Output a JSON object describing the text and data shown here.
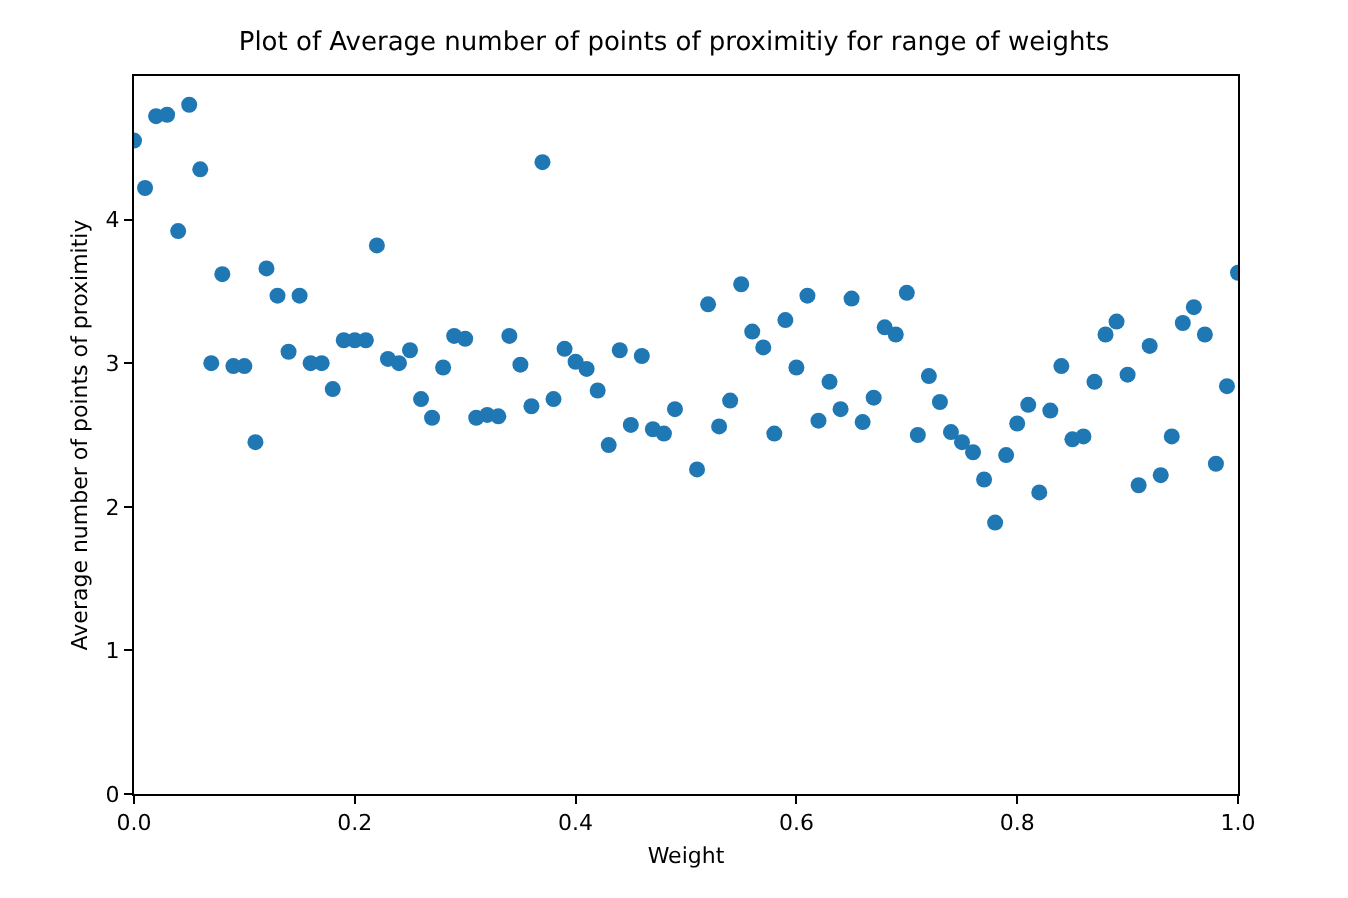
{
  "chart_data": {
    "type": "scatter",
    "title": "Plot of Average number of points of proximitiy for range of weights",
    "xlabel": "Weight",
    "ylabel": "Average number of points of proximitiy",
    "x": [
      0,
      0.01,
      0.02,
      0.03,
      0.04,
      0.05,
      0.06,
      0.07,
      0.08,
      0.09,
      0.1,
      0.11,
      0.12,
      0.13,
      0.14,
      0.15,
      0.16,
      0.17,
      0.18,
      0.19,
      0.2,
      0.21,
      0.22,
      0.23,
      0.24,
      0.25,
      0.26,
      0.27,
      0.28,
      0.29,
      0.3,
      0.31,
      0.32,
      0.33,
      0.34,
      0.35,
      0.36,
      0.37,
      0.38,
      0.39,
      0.4,
      0.41,
      0.42,
      0.43,
      0.44,
      0.45,
      0.46,
      0.47,
      0.48,
      0.49,
      0.51,
      0.52,
      0.53,
      0.54,
      0.55,
      0.56,
      0.57,
      0.58,
      0.59,
      0.6,
      0.61,
      0.62,
      0.63,
      0.64,
      0.65,
      0.66,
      0.67,
      0.68,
      0.69,
      0.7,
      0.71,
      0.72,
      0.73,
      0.74,
      0.75,
      0.76,
      0.77,
      0.78,
      0.79,
      0.8,
      0.81,
      0.82,
      0.83,
      0.84,
      0.85,
      0.86,
      0.87,
      0.88,
      0.89,
      0.9,
      0.91,
      0.92,
      0.93,
      0.94,
      0.95,
      0.96,
      0.97,
      0.98,
      0.99,
      1.0
    ],
    "values": [
      4.55,
      4.22,
      4.72,
      4.73,
      3.92,
      4.8,
      4.35,
      3.0,
      3.62,
      2.98,
      2.98,
      2.45,
      3.66,
      3.47,
      3.08,
      3.47,
      3.0,
      3.0,
      2.82,
      3.16,
      3.16,
      3.16,
      3.82,
      3.03,
      3.0,
      3.09,
      2.75,
      2.62,
      2.97,
      3.19,
      3.17,
      2.62,
      2.64,
      2.63,
      3.19,
      2.99,
      2.7,
      4.4,
      2.75,
      3.1,
      3.01,
      2.96,
      2.81,
      2.43,
      3.09,
      2.57,
      3.05,
      2.54,
      2.51,
      2.68,
      2.26,
      3.41,
      2.56,
      2.74,
      3.55,
      3.22,
      3.11,
      2.51,
      3.3,
      2.97,
      3.47,
      2.6,
      2.87,
      2.68,
      3.45,
      2.59,
      2.76,
      3.25,
      3.2,
      3.49,
      2.5,
      2.91,
      2.73,
      2.52,
      2.45,
      2.38,
      2.19,
      1.89,
      2.36,
      2.58,
      2.71,
      2.1,
      2.67,
      2.98,
      2.47,
      2.49,
      2.87,
      3.2,
      3.29,
      2.92,
      2.15,
      3.12,
      2.22,
      2.49,
      3.28,
      3.39,
      3.2,
      2.3,
      2.84,
      3.63
    ],
    "color": "#1f77b4",
    "marker": "circle",
    "xlim": [
      0,
      1
    ],
    "xticks": [
      {
        "value": 0,
        "label": "0.0"
      },
      {
        "value": 0.2,
        "label": "0.2"
      },
      {
        "value": 0.4,
        "label": "0.4"
      },
      {
        "value": 0.6,
        "label": "0.6"
      },
      {
        "value": 0.8,
        "label": "0.8"
      },
      {
        "value": 1,
        "label": "1.0"
      }
    ],
    "ylim": [
      0,
      5
    ],
    "yticks": [
      0,
      1,
      2,
      3,
      4
    ],
    "grid": false
  }
}
